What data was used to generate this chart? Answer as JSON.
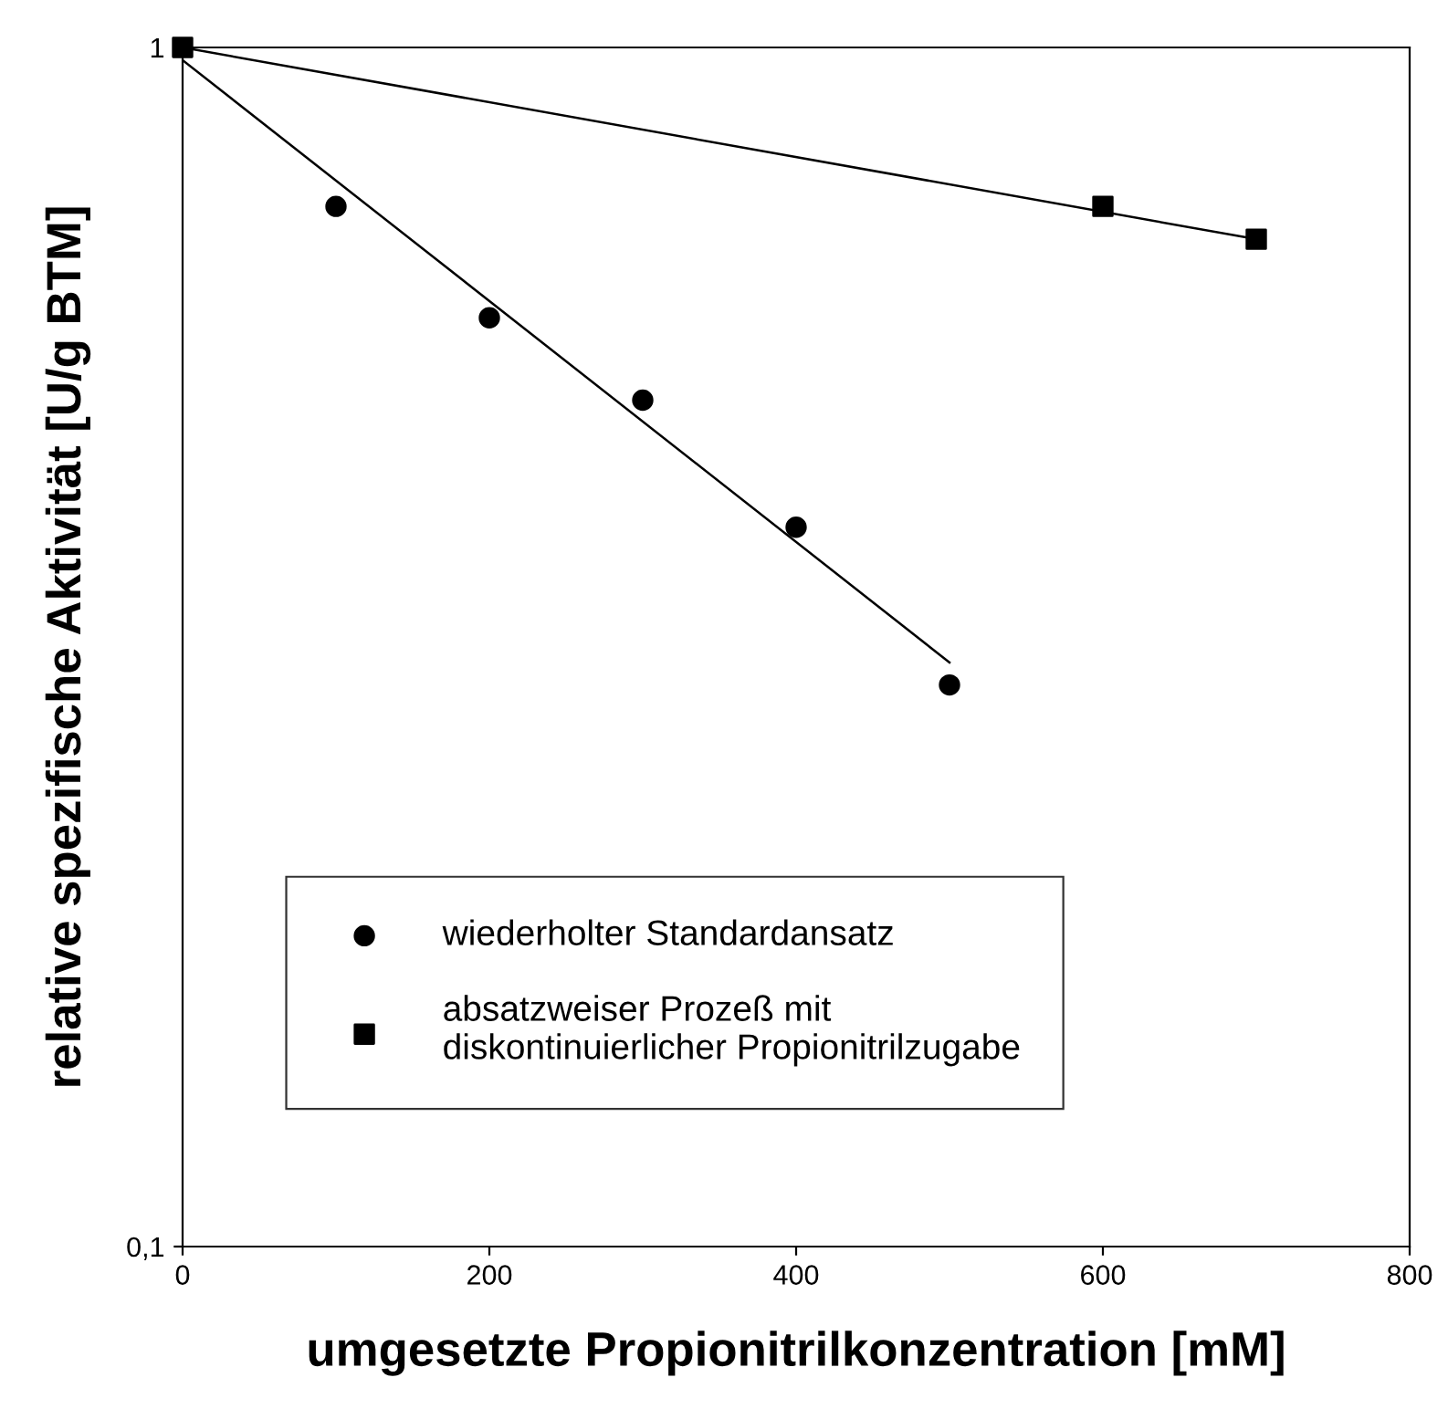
{
  "chart_data": {
    "type": "scatter",
    "xlabel": "umgesetzte Propionitrilkonzentration [mM]",
    "ylabel": "relative spezifische Aktivität [U/g BTM]",
    "log": "y",
    "xlim": [
      0,
      800
    ],
    "xticks": [
      0,
      200,
      400,
      600,
      800
    ],
    "ylim": [
      0.1,
      1
    ],
    "yticks": [
      {
        "value": 0.1,
        "label": "0,1"
      },
      1
    ],
    "grid": false,
    "legend": "bottom left",
    "series": [
      {
        "name": "wiederholter Standardansatz",
        "marker": "circle",
        "color": "#000000",
        "x": [
          100,
          200,
          300,
          400,
          500
        ],
        "values": [
          0.737,
          0.595,
          0.508,
          0.398,
          0.294
        ]
      },
      {
        "name": "absatzweiser Prozeß mit\ndiskontinuierlicher Propionitrilzugabe",
        "marker": "square",
        "color": "#000000",
        "x": [
          0,
          600,
          700
        ],
        "values": [
          1,
          0.737,
          0.692
        ]
      },
      {
        "type": "line",
        "marker": "none",
        "line_style": "solid",
        "color": "#000000",
        "x": [
          0,
          500
        ],
        "values": [
          0.976,
          0.307
        ]
      },
      {
        "type": "line",
        "marker": "none",
        "line_style": "solid",
        "color": "#000000",
        "x": [
          0,
          700
        ],
        "values": [
          1,
          0.692
        ]
      }
    ]
  }
}
